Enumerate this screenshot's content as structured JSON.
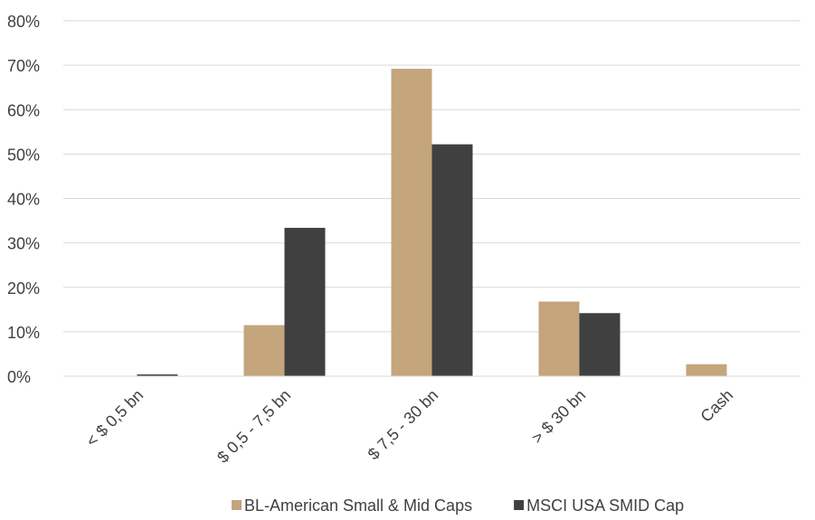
{
  "chart_data": {
    "type": "bar",
    "title": "",
    "xlabel": "",
    "ylabel": "",
    "categories": [
      "< $ 0,5 bn",
      "$ 0,5 - 7,5 bn",
      "$ 7,5 - 30 bn",
      "> $ 30 bn",
      "Cash"
    ],
    "series": [
      {
        "name": "BL-American Small & Mid Caps",
        "color": "#c4a57c",
        "values": [
          0.0,
          11.5,
          69.2,
          16.8,
          2.7
        ]
      },
      {
        "name": "MSCI USA SMID Cap",
        "color": "#404040",
        "values": [
          0.4,
          33.4,
          52.2,
          14.2,
          0.0
        ]
      }
    ],
    "ylim": [
      0,
      80
    ],
    "yticks": [
      0,
      10,
      20,
      30,
      40,
      50,
      60,
      70,
      80
    ],
    "ytick_labels": [
      "0%",
      "10%",
      "20%",
      "30%",
      "40%",
      "50%",
      "60%",
      "70%",
      "80%"
    ],
    "grid": true,
    "legend_position": "bottom"
  }
}
